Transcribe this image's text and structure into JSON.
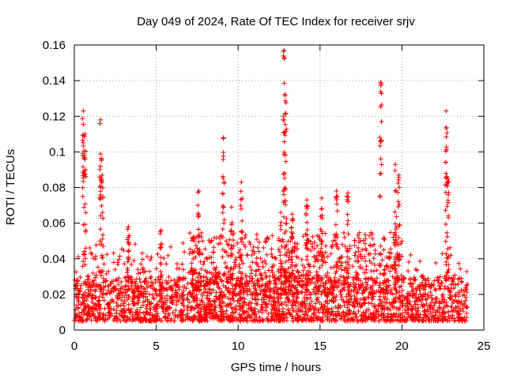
{
  "chart_data": {
    "type": "scatter",
    "title": "Day 049 of 2024, Rate Of TEC Index for receiver srjv",
    "xlabel": "GPS time / hours",
    "ylabel": "ROTI / TECUs",
    "xlim": [
      0,
      25
    ],
    "ylim": [
      0,
      0.16
    ],
    "x_ticks": [
      0,
      5,
      10,
      15,
      20,
      25
    ],
    "x_tick_labels": [
      "0",
      "5",
      "10",
      "15",
      "20",
      "25"
    ],
    "y_ticks": [
      0,
      0.02,
      0.04,
      0.06,
      0.08,
      0.1,
      0.12,
      0.14,
      0.16
    ],
    "y_tick_labels": [
      "0",
      "0.02",
      "0.04",
      "0.06",
      "0.08",
      "0.1",
      "0.12",
      "0.14",
      "0.16"
    ],
    "grid": true,
    "marker": "+",
    "color": "#ff0000",
    "series": [
      {
        "name": "ROTI",
        "baseline_range": [
          0.005,
          0.03
        ],
        "spikes": [
          {
            "x": 0.55,
            "ymax": 0.123
          },
          {
            "x": 0.65,
            "ymax": 0.11
          },
          {
            "x": 1.6,
            "ymax": 0.118
          },
          {
            "x": 1.7,
            "ymax": 0.087
          },
          {
            "x": 3.3,
            "ymax": 0.058
          },
          {
            "x": 5.3,
            "ymax": 0.056
          },
          {
            "x": 7.6,
            "ymax": 0.078
          },
          {
            "x": 9.1,
            "ymax": 0.108
          },
          {
            "x": 9.6,
            "ymax": 0.069
          },
          {
            "x": 10.2,
            "ymax": 0.083
          },
          {
            "x": 12.6,
            "ymax": 0.066
          },
          {
            "x": 12.8,
            "ymax": 0.157
          },
          {
            "x": 12.9,
            "ymax": 0.132
          },
          {
            "x": 13.3,
            "ymax": 0.065
          },
          {
            "x": 14.2,
            "ymax": 0.073
          },
          {
            "x": 15.1,
            "ymax": 0.074
          },
          {
            "x": 16.0,
            "ymax": 0.078
          },
          {
            "x": 16.7,
            "ymax": 0.077
          },
          {
            "x": 18.7,
            "ymax": 0.139
          },
          {
            "x": 19.6,
            "ymax": 0.093
          },
          {
            "x": 19.8,
            "ymax": 0.087
          },
          {
            "x": 22.7,
            "ymax": 0.123
          },
          {
            "x": 22.8,
            "ymax": 0.085
          }
        ]
      }
    ]
  }
}
